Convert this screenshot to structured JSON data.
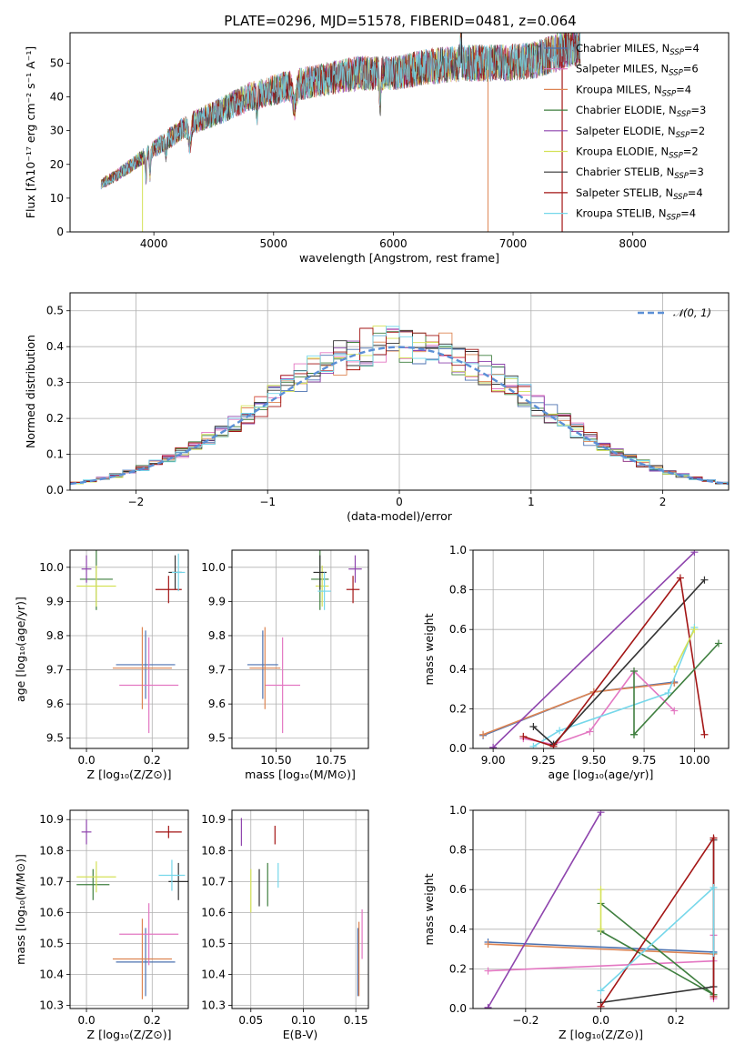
{
  "colors": {
    "chabrier_miles": "#4c72b0",
    "salpeter_miles": "#e377c2",
    "kroupa_miles": "#dd8452",
    "chabrier_elodie": "#3f7f3f",
    "salpeter_elodie": "#8e44ad",
    "kroupa_elodie": "#d4e157",
    "chabrier_stelib": "#333333",
    "salpeter_stelib": "#a31515",
    "kroupa_stelib": "#76d7ea",
    "normal": "#5b8fd6",
    "grid": "#b0b0b0"
  },
  "chart_data": [
    {
      "id": "spectrum",
      "type": "line",
      "title": "PLATE=0296, MJD=51578, FIBERID=0481, z=0.064",
      "xlabel": "wavelength [Angstrom, rest frame]",
      "ylabel": "Flux [fλ10⁻¹⁷ erg cm⁻² s⁻¹ A⁻¹]",
      "xlim": [
        3300,
        8800
      ],
      "ylim": [
        0,
        59
      ],
      "xticks": [
        4000,
        5000,
        6000,
        7000,
        8000
      ],
      "yticks": [
        0,
        10,
        20,
        30,
        40,
        50
      ],
      "grid": false,
      "legend_position": "right",
      "continuum": {
        "x": [
          3550,
          3700,
          3900,
          4100,
          4300,
          4500,
          4800,
          5100,
          5400,
          5700,
          6000,
          6300,
          6600,
          6900,
          7200,
          7500
        ],
        "y": [
          14,
          17,
          22,
          27,
          32,
          35,
          40,
          43,
          45,
          47,
          47,
          49,
          50,
          50,
          51,
          55
        ]
      },
      "series": [
        {
          "name": "Chabrier MILES, N_SSP=4",
          "label_main": "Chabrier MILES, N",
          "label_sub": "SSP",
          "label_tail": "=4"
        },
        {
          "name": "Salpeter MILES, N_SSP=6",
          "label_main": "Salpeter MILES, N",
          "label_sub": "SSP",
          "label_tail": "=6"
        },
        {
          "name": "Kroupa MILES, N_SSP=4",
          "label_main": "Kroupa MILES, N",
          "label_sub": "SSP",
          "label_tail": "=4"
        },
        {
          "name": "Chabrier ELODIE, N_SSP=3",
          "label_main": "Chabrier ELODIE, N",
          "label_sub": "SSP",
          "label_tail": "=3"
        },
        {
          "name": "Salpeter ELODIE, N_SSP=2",
          "label_main": "Salpeter ELODIE, N",
          "label_sub": "SSP",
          "label_tail": "=2"
        },
        {
          "name": "Kroupa ELODIE, N_SSP=2",
          "label_main": "Kroupa ELODIE, N",
          "label_sub": "SSP",
          "label_tail": "=2"
        },
        {
          "name": "Chabrier STELIB, N_SSP=3",
          "label_main": "Chabrier STELIB, N",
          "label_sub": "SSP",
          "label_tail": "=3"
        },
        {
          "name": "Salpeter STELIB, N_SSP=4",
          "label_main": "Salpeter STELIB, N",
          "label_sub": "SSP",
          "label_tail": "=4"
        },
        {
          "name": "Kroupa STELIB, N_SSP=4",
          "label_main": "Kroupa STELIB, N",
          "label_sub": "SSP",
          "label_tail": "=4"
        }
      ]
    },
    {
      "id": "residuals",
      "type": "histogram",
      "xlabel": "(data-model)/error",
      "ylabel": "Normed distribution",
      "xlim": [
        -2.5,
        2.5
      ],
      "ylim": [
        0,
        0.55
      ],
      "xticks": [
        -2,
        -1,
        0,
        1,
        2
      ],
      "yticks": [
        0.0,
        0.1,
        0.2,
        0.3,
        0.4,
        0.5
      ],
      "grid": true,
      "legend_position": "top-right",
      "legend_label": "𝒩(0, 1)",
      "bin_width": 0.1
    },
    {
      "id": "age_vs_Z",
      "type": "errorbar",
      "xlabel": "Z [log₁₀(Z/Z⊙)]",
      "ylabel": "age  [log₁₀(age/yr)]",
      "xlim": [
        -0.05,
        0.31
      ],
      "ylim": [
        9.47,
        10.05
      ],
      "xticks": [
        0.0,
        0.2
      ],
      "yticks": [
        9.5,
        9.6,
        9.7,
        9.8,
        9.9,
        10.0
      ],
      "grid": true,
      "points": [
        {
          "x": 0.18,
          "y": 9.715,
          "xerr": 0.09,
          "yerr": 0.1,
          "c": "chabrier_miles"
        },
        {
          "x": 0.19,
          "y": 9.655,
          "xerr": 0.09,
          "yerr": 0.14,
          "c": "salpeter_miles"
        },
        {
          "x": 0.17,
          "y": 9.705,
          "xerr": 0.09,
          "yerr": 0.12,
          "c": "kroupa_miles"
        },
        {
          "x": 0.03,
          "y": 9.965,
          "xerr": 0.05,
          "yerr": 0.09,
          "c": "chabrier_elodie"
        },
        {
          "x": 0.0,
          "y": 9.995,
          "xerr": 0.015,
          "yerr": 0.04,
          "c": "salpeter_elodie"
        },
        {
          "x": 0.03,
          "y": 9.945,
          "xerr": 0.06,
          "yerr": 0.06,
          "c": "kroupa_elodie"
        },
        {
          "x": 0.27,
          "y": 9.985,
          "xerr": 0.02,
          "yerr": 0.05,
          "c": "chabrier_stelib"
        },
        {
          "x": 0.25,
          "y": 9.935,
          "xerr": 0.04,
          "yerr": 0.04,
          "c": "salpeter_stelib"
        },
        {
          "x": 0.28,
          "y": 9.985,
          "xerr": 0.02,
          "yerr": 0.055,
          "c": "kroupa_stelib"
        }
      ]
    },
    {
      "id": "age_vs_mass",
      "type": "errorbar",
      "xlabel": "mass [log₁₀(M/M⊙)]",
      "ylabel": "",
      "xlim": [
        10.3,
        10.92
      ],
      "ylim": [
        9.47,
        10.05
      ],
      "xticks": [
        10.5,
        10.75
      ],
      "yticks": [
        9.5,
        9.6,
        9.7,
        9.8,
        9.9,
        10.0
      ],
      "grid": true,
      "points": [
        {
          "x": 10.44,
          "y": 9.715,
          "xerr": 0.07,
          "yerr": 0.1,
          "c": "chabrier_miles"
        },
        {
          "x": 10.53,
          "y": 9.655,
          "xerr": 0.08,
          "yerr": 0.14,
          "c": "salpeter_miles"
        },
        {
          "x": 10.45,
          "y": 9.705,
          "xerr": 0.07,
          "yerr": 0.12,
          "c": "kroupa_miles"
        },
        {
          "x": 10.7,
          "y": 9.965,
          "xerr": 0.04,
          "yerr": 0.09,
          "c": "chabrier_elodie"
        },
        {
          "x": 10.86,
          "y": 9.995,
          "xerr": 0.03,
          "yerr": 0.04,
          "c": "salpeter_elodie"
        },
        {
          "x": 10.71,
          "y": 9.945,
          "xerr": 0.03,
          "yerr": 0.06,
          "c": "kroupa_elodie"
        },
        {
          "x": 10.7,
          "y": 9.985,
          "xerr": 0.03,
          "yerr": 0.05,
          "c": "chabrier_stelib"
        },
        {
          "x": 10.85,
          "y": 9.935,
          "xerr": 0.03,
          "yerr": 0.04,
          "c": "salpeter_stelib"
        },
        {
          "x": 10.72,
          "y": 9.93,
          "xerr": 0.03,
          "yerr": 0.055,
          "c": "kroupa_stelib"
        }
      ]
    },
    {
      "id": "weight_vs_age",
      "type": "line",
      "xlabel": "age  [log₁₀(age/yr)]",
      "ylabel": "mass weight",
      "xlim": [
        8.9,
        10.17
      ],
      "ylim": [
        0,
        1.0
      ],
      "xticks": [
        9.0,
        9.25,
        9.5,
        9.75,
        10.0
      ],
      "yticks": [
        0.0,
        0.2,
        0.4,
        0.6,
        0.8,
        1.0
      ],
      "grid": true,
      "series": [
        {
          "c": "chabrier_miles",
          "x": [
            8.95,
            9.5,
            9.9
          ],
          "y": [
            0.065,
            0.285,
            0.335
          ]
        },
        {
          "c": "kroupa_miles",
          "x": [
            8.95,
            9.5,
            9.9
          ],
          "y": [
            0.07,
            0.285,
            0.33
          ]
        },
        {
          "c": "salpeter_miles",
          "x": [
            9.15,
            9.3,
            9.48,
            9.7,
            9.9
          ],
          "y": [
            0.05,
            0.02,
            0.085,
            0.39,
            0.19
          ]
        },
        {
          "c": "kroupa_stelib",
          "x": [
            9.2,
            9.33,
            9.87,
            10.0
          ],
          "y": [
            0.01,
            0.09,
            0.28,
            0.61
          ]
        },
        {
          "c": "chabrier_stelib",
          "x": [
            9.2,
            9.3,
            10.05
          ],
          "y": [
            0.11,
            0.02,
            0.85
          ]
        },
        {
          "c": "salpeter_stelib",
          "x": [
            9.15,
            9.3,
            9.93,
            10.05
          ],
          "y": [
            0.06,
            0.01,
            0.86,
            0.07
          ]
        },
        {
          "c": "chabrier_elodie",
          "x": [
            9.7,
            10.12
          ],
          "y": [
            0.07,
            0.53
          ]
        },
        {
          "c": "chabrier_elodie",
          "x": [
            9.7,
            9.7
          ],
          "y": [
            0.07,
            0.39
          ]
        },
        {
          "c": "salpeter_elodie",
          "x": [
            9.0,
            10.0
          ],
          "y": [
            0.005,
            0.99
          ]
        },
        {
          "c": "kroupa_elodie",
          "x": [
            9.9,
            10.0
          ],
          "y": [
            0.4,
            0.6
          ]
        }
      ]
    },
    {
      "id": "mass_vs_Z",
      "type": "errorbar",
      "xlabel": "Z [log₁₀(Z/Z⊙)]",
      "ylabel": "mass [log₁₀(M/M⊙)]",
      "xlim": [
        -0.05,
        0.31
      ],
      "ylim": [
        10.29,
        10.93
      ],
      "xticks": [
        0.0,
        0.2
      ],
      "yticks": [
        10.3,
        10.4,
        10.5,
        10.6,
        10.7,
        10.8,
        10.9
      ],
      "grid": true,
      "points": [
        {
          "x": 0.18,
          "y": 10.44,
          "xerr": 0.09,
          "yerr": 0.11,
          "c": "chabrier_miles"
        },
        {
          "x": 0.19,
          "y": 10.53,
          "xerr": 0.09,
          "yerr": 0.1,
          "c": "salpeter_miles"
        },
        {
          "x": 0.17,
          "y": 10.45,
          "xerr": 0.09,
          "yerr": 0.13,
          "c": "kroupa_miles"
        },
        {
          "x": 0.02,
          "y": 10.69,
          "xerr": 0.05,
          "yerr": 0.05,
          "c": "chabrier_elodie"
        },
        {
          "x": 0.0,
          "y": 10.86,
          "xerr": 0.015,
          "yerr": 0.04,
          "c": "salpeter_elodie"
        },
        {
          "x": 0.03,
          "y": 10.715,
          "xerr": 0.06,
          "yerr": 0.05,
          "c": "kroupa_elodie"
        },
        {
          "x": 0.28,
          "y": 10.7,
          "xerr": 0.03,
          "yerr": 0.06,
          "c": "chabrier_stelib"
        },
        {
          "x": 0.25,
          "y": 10.86,
          "xerr": 0.04,
          "yerr": 0.02,
          "c": "salpeter_stelib"
        },
        {
          "x": 0.26,
          "y": 10.72,
          "xerr": 0.04,
          "yerr": 0.05,
          "c": "kroupa_stelib"
        }
      ]
    },
    {
      "id": "mass_vs_ebv",
      "type": "errorbar",
      "xlabel": "E(B-V)",
      "ylabel": "",
      "xlim": [
        0.032,
        0.162
      ],
      "ylim": [
        10.29,
        10.93
      ],
      "xticks": [
        0.05,
        0.1,
        0.15
      ],
      "yticks": [
        10.3,
        10.4,
        10.5,
        10.6,
        10.7,
        10.8,
        10.9
      ],
      "grid": true,
      "points": [
        {
          "x": 0.152,
          "y": 10.44,
          "xerr": 0,
          "yerr": 0.11,
          "c": "chabrier_miles"
        },
        {
          "x": 0.156,
          "y": 10.53,
          "xerr": 0,
          "yerr": 0.08,
          "c": "salpeter_miles"
        },
        {
          "x": 0.153,
          "y": 10.45,
          "xerr": 0,
          "yerr": 0.12,
          "c": "kroupa_miles"
        },
        {
          "x": 0.066,
          "y": 10.69,
          "xerr": 0,
          "yerr": 0.07,
          "c": "chabrier_elodie"
        },
        {
          "x": 0.041,
          "y": 10.86,
          "xerr": 0,
          "yerr": 0.045,
          "c": "salpeter_elodie"
        },
        {
          "x": 0.05,
          "y": 10.67,
          "xerr": 0,
          "yerr": 0.07,
          "c": "kroupa_elodie"
        },
        {
          "x": 0.058,
          "y": 10.68,
          "xerr": 0,
          "yerr": 0.06,
          "c": "chabrier_stelib"
        },
        {
          "x": 0.073,
          "y": 10.85,
          "xerr": 0,
          "yerr": 0.03,
          "c": "salpeter_stelib"
        },
        {
          "x": 0.076,
          "y": 10.72,
          "xerr": 0,
          "yerr": 0.04,
          "c": "kroupa_stelib"
        }
      ]
    },
    {
      "id": "weight_vs_Z",
      "type": "line",
      "xlabel": "Z [log₁₀(Z/Z⊙)]",
      "ylabel": "mass weight",
      "xlim": [
        -0.34,
        0.34
      ],
      "ylim": [
        0,
        1.0
      ],
      "xticks": [
        -0.2,
        0.0,
        0.2
      ],
      "yticks": [
        0.0,
        0.2,
        0.4,
        0.6,
        0.8,
        1.0
      ],
      "grid": true,
      "series": [
        {
          "c": "chabrier_miles",
          "x": [
            -0.3,
            0.3
          ],
          "y": [
            0.335,
            0.285
          ]
        },
        {
          "c": "kroupa_miles",
          "x": [
            -0.3,
            0.3
          ],
          "y": [
            0.325,
            0.275
          ]
        },
        {
          "c": "salpeter_miles",
          "x": [
            -0.3,
            0.3,
            0.3,
            0.3
          ],
          "y": [
            0.19,
            0.24,
            0.37,
            0.05
          ]
        },
        {
          "c": "salpeter_elodie",
          "x": [
            -0.3,
            0.0
          ],
          "y": [
            0.005,
            0.99
          ]
        },
        {
          "c": "chabrier_elodie",
          "x": [
            0.0,
            0.3,
            0.0
          ],
          "y": [
            0.53,
            0.07,
            0.39
          ]
        },
        {
          "c": "kroupa_elodie",
          "x": [
            0.0,
            0.0
          ],
          "y": [
            0.6,
            0.4
          ]
        },
        {
          "c": "chabrier_stelib",
          "x": [
            0.0,
            0.3,
            0.3
          ],
          "y": [
            0.03,
            0.11,
            0.85
          ]
        },
        {
          "c": "salpeter_stelib",
          "x": [
            0.0,
            0.3,
            0.3
          ],
          "y": [
            0.01,
            0.86,
            0.06
          ]
        },
        {
          "c": "kroupa_stelib",
          "x": [
            0.0,
            0.3,
            0.3
          ],
          "y": [
            0.09,
            0.61,
            0.28
          ]
        }
      ]
    }
  ]
}
